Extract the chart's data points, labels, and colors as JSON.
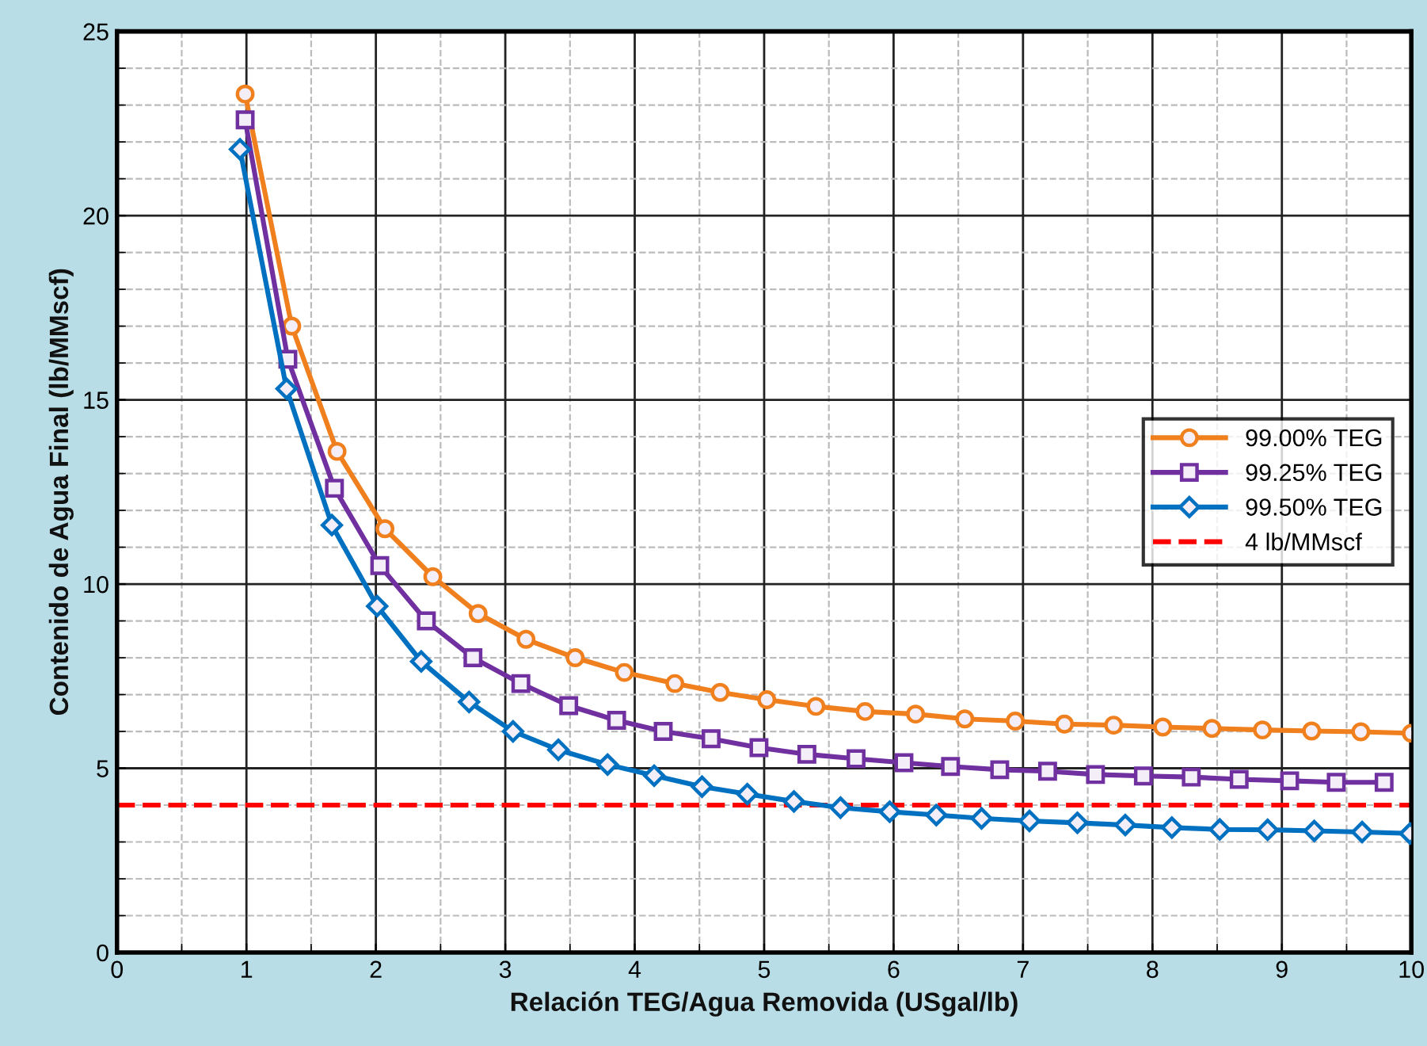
{
  "chart_data": {
    "type": "line",
    "xlabel": "Relación TEG/Agua Removida (USgal/lb)",
    "ylabel": "Contenido de Agua Final (lb/MMscf)",
    "xlim": [
      0,
      10
    ],
    "ylim": [
      0,
      25
    ],
    "xticks": [
      0,
      {
        "value": 0.5,
        "label": null
      },
      1,
      {
        "value": 1.5,
        "label": null
      },
      2,
      {
        "value": 2.5,
        "label": null
      },
      3,
      {
        "value": 3.5,
        "label": null
      },
      4,
      {
        "value": 4.5,
        "label": null
      },
      5,
      {
        "value": 5.5,
        "label": null
      },
      6,
      {
        "value": 6.5,
        "label": null
      },
      7,
      {
        "value": 7.5,
        "label": null
      },
      8,
      {
        "value": 8.5,
        "label": null
      },
      9,
      {
        "value": 9.5,
        "label": null
      },
      10
    ],
    "yticks": [
      0,
      {
        "value": 1,
        "label": null
      },
      {
        "value": 2,
        "label": null
      },
      {
        "value": 3,
        "label": null
      },
      {
        "value": 4,
        "label": null
      },
      5,
      {
        "value": 6,
        "label": null
      },
      {
        "value": 7,
        "label": null
      },
      {
        "value": 8,
        "label": null
      },
      {
        "value": 9,
        "label": null
      },
      10,
      {
        "value": 11,
        "label": null
      },
      {
        "value": 12,
        "label": null
      },
      {
        "value": 13,
        "label": null
      },
      {
        "value": 14,
        "label": null
      },
      15,
      {
        "value": 16,
        "label": null
      },
      {
        "value": 17,
        "label": null
      },
      {
        "value": 18,
        "label": null
      },
      {
        "value": 19,
        "label": null
      },
      20,
      {
        "value": 21,
        "label": null
      },
      {
        "value": 22,
        "label": null
      },
      {
        "value": 23,
        "label": null
      },
      {
        "value": 24,
        "label": null
      },
      25
    ],
    "grid": true,
    "legend": "right",
    "line_style": "solid",
    "series": [
      {
        "name": "99.00% TEG",
        "color": "#f07f1e",
        "marker": "circle",
        "x": [
          0.99,
          1.35,
          1.7,
          2.07,
          2.44,
          2.79,
          3.16,
          3.54,
          3.92,
          4.31,
          4.66,
          5.02,
          5.4,
          5.78,
          6.17,
          6.55,
          6.94,
          7.32,
          7.7,
          8.08,
          8.46,
          8.85,
          9.23,
          9.61,
          10.0
        ],
        "values": [
          23.3,
          17.0,
          13.6,
          11.5,
          10.2,
          9.2,
          8.5,
          8.0,
          7.6,
          7.3,
          7.06,
          6.86,
          6.68,
          6.54,
          6.47,
          6.34,
          6.28,
          6.2,
          6.17,
          6.12,
          6.08,
          6.04,
          6.01,
          5.99,
          5.95
        ]
      },
      {
        "name": "99.25% TEG",
        "color": "#7030a0",
        "marker": "square",
        "x": [
          0.99,
          1.32,
          1.68,
          2.03,
          2.39,
          2.75,
          3.12,
          3.49,
          3.86,
          4.22,
          4.59,
          4.96,
          5.33,
          5.71,
          6.08,
          6.44,
          6.82,
          7.19,
          7.56,
          7.93,
          8.3,
          8.67,
          9.06,
          9.42,
          9.79
        ],
        "values": [
          22.6,
          16.1,
          12.6,
          10.5,
          9.0,
          8.0,
          7.3,
          6.7,
          6.3,
          6.0,
          5.8,
          5.56,
          5.38,
          5.26,
          5.15,
          5.05,
          4.96,
          4.92,
          4.83,
          4.79,
          4.76,
          4.7,
          4.66,
          4.62,
          4.62
        ]
      },
      {
        "name": "99.50% TEG",
        "color": "#0070c0",
        "marker": "diamond",
        "x": [
          0.95,
          1.31,
          1.66,
          2.01,
          2.35,
          2.72,
          3.06,
          3.41,
          3.79,
          4.15,
          4.52,
          4.87,
          5.23,
          5.59,
          5.97,
          6.33,
          6.68,
          7.05,
          7.42,
          7.79,
          8.15,
          8.52,
          8.89,
          9.25,
          9.62,
          9.99
        ],
        "values": [
          21.8,
          15.3,
          11.6,
          9.4,
          7.9,
          6.8,
          6.0,
          5.5,
          5.1,
          4.8,
          4.5,
          4.3,
          4.1,
          3.93,
          3.82,
          3.73,
          3.64,
          3.57,
          3.52,
          3.46,
          3.39,
          3.34,
          3.33,
          3.3,
          3.27,
          3.23
        ]
      }
    ],
    "ref_lines": [
      {
        "axis": "y",
        "value": 4,
        "label": "4 lb/MMscf",
        "color": "#ff0000",
        "line_style": "dashed"
      }
    ]
  }
}
